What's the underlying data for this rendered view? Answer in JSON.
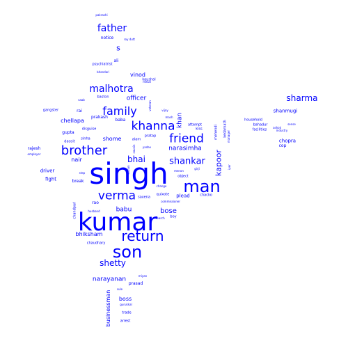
{
  "colors": {
    "background": "#ffffff",
    "word": "#0000ff"
  },
  "words": [
    {
      "text": "singh",
      "vertical": false
    },
    {
      "text": "kumar",
      "vertical": false
    },
    {
      "text": "man",
      "vertical": false
    },
    {
      "text": "son",
      "vertical": false
    },
    {
      "text": "return",
      "vertical": false
    },
    {
      "text": "verma",
      "vertical": false
    },
    {
      "text": "brother",
      "vertical": false
    },
    {
      "text": "friend",
      "vertical": false
    },
    {
      "text": "khanna",
      "vertical": false
    },
    {
      "text": "family",
      "vertical": false
    },
    {
      "text": "malhotra",
      "vertical": false
    },
    {
      "text": "father",
      "vertical": false
    },
    {
      "text": "sharma",
      "vertical": false
    },
    {
      "text": "shankar",
      "vertical": false
    },
    {
      "text": "shetty",
      "vertical": false
    },
    {
      "text": "bhai",
      "vertical": false
    },
    {
      "text": "kapoor",
      "vertical": true
    },
    {
      "text": "s",
      "vertical": false
    },
    {
      "text": "narayanan",
      "vertical": false
    },
    {
      "text": "narasimha",
      "vertical": false
    },
    {
      "text": "bose",
      "vertical": false
    },
    {
      "text": "babu",
      "vertical": false
    },
    {
      "text": "officer",
      "vertical": false
    },
    {
      "text": "shome",
      "vertical": false
    },
    {
      "text": "bhiksham",
      "vertical": false
    },
    {
      "text": "vinod",
      "vertical": false
    },
    {
      "text": "chellapa",
      "vertical": false
    },
    {
      "text": "nair",
      "vertical": false
    },
    {
      "text": "driver",
      "vertical": false
    },
    {
      "text": "fight",
      "vertical": false
    },
    {
      "text": "khan",
      "vertical": true
    },
    {
      "text": "boss",
      "vertical": false
    },
    {
      "text": "businessman",
      "vertical": true
    },
    {
      "text": "shanmugi",
      "vertical": false
    },
    {
      "text": "chopra",
      "vertical": false
    },
    {
      "text": "cop",
      "vertical": false
    },
    {
      "text": "plead",
      "vertical": false
    },
    {
      "text": "notice",
      "vertical": false
    },
    {
      "text": "rai",
      "vertical": false
    },
    {
      "text": "prakash",
      "vertical": false
    },
    {
      "text": "baba",
      "vertical": false
    },
    {
      "text": "break",
      "vertical": false
    },
    {
      "text": "rao",
      "vertical": false
    },
    {
      "text": "ali",
      "vertical": false
    },
    {
      "text": "rajesh",
      "vertical": false
    },
    {
      "text": "gupta",
      "vertical": false
    },
    {
      "text": "alam",
      "vertical": false
    },
    {
      "text": "pratap",
      "vertical": false
    },
    {
      "text": "quixote",
      "vertical": false
    },
    {
      "text": "saxena",
      "vertical": false
    },
    {
      "text": "boy",
      "vertical": false
    },
    {
      "text": "object",
      "vertical": false
    },
    {
      "text": "chacko",
      "vertical": false
    },
    {
      "text": "sinha",
      "vertical": false
    },
    {
      "text": "attempt",
      "vertical": false
    },
    {
      "text": "kaushal",
      "vertical": false
    },
    {
      "text": "psychiatrist",
      "vertical": false
    },
    {
      "text": "prasad",
      "vertical": false
    },
    {
      "text": "chaudhary",
      "vertical": false
    },
    {
      "text": "household",
      "vertical": false
    },
    {
      "text": "bahadur",
      "vertical": false
    },
    {
      "text": "mehendi",
      "vertical": true
    },
    {
      "text": "kedarnath",
      "vertical": true
    },
    {
      "text": "gurukkal",
      "vertical": false
    },
    {
      "text": "trade",
      "vertical": false
    },
    {
      "text": "arrest",
      "vertical": false
    },
    {
      "text": "miyan",
      "vertical": false
    },
    {
      "text": "sule",
      "vertical": false
    },
    {
      "text": "chandpuri",
      "vertical": true
    },
    {
      "text": "husband",
      "vertical": false
    },
    {
      "text": "search",
      "vertical": false
    },
    {
      "text": "baston",
      "vertical": false
    },
    {
      "text": "saab",
      "vertical": false
    },
    {
      "text": "gangster",
      "vertical": false
    },
    {
      "text": "disguise",
      "vertical": false
    },
    {
      "text": "dacoit",
      "vertical": false
    },
    {
      "text": "employer",
      "vertical": false
    },
    {
      "text": "step",
      "vertical": false
    },
    {
      "text": "change",
      "vertical": false
    },
    {
      "text": "commissioner",
      "vertical": false
    },
    {
      "text": "yadav",
      "vertical": false
    },
    {
      "text": "vijay",
      "vertical": false
    },
    {
      "text": "kiss",
      "vertical": false
    },
    {
      "text": "menon",
      "vertical": false
    },
    {
      "text": "girji",
      "vertical": false
    },
    {
      "text": "iyer",
      "vertical": true
    },
    {
      "text": "manager",
      "vertical": true
    },
    {
      "text": "ashok",
      "vertical": false
    },
    {
      "text": "sense",
      "vertical": false
    },
    {
      "text": "facilities",
      "vertical": false
    },
    {
      "text": "industry",
      "vertical": false
    },
    {
      "text": "pakrashi",
      "vertical": false
    },
    {
      "text": "roy dutt",
      "vertical": false
    },
    {
      "text": "bhandari",
      "vertical": false
    },
    {
      "text": "mittal",
      "vertical": false
    },
    {
      "text": "veteran",
      "vertical": true
    },
    {
      "text": "mash",
      "vertical": false
    },
    {
      "text": "kishan",
      "vertical": true
    },
    {
      "text": "cousin",
      "vertical": true
    }
  ]
}
